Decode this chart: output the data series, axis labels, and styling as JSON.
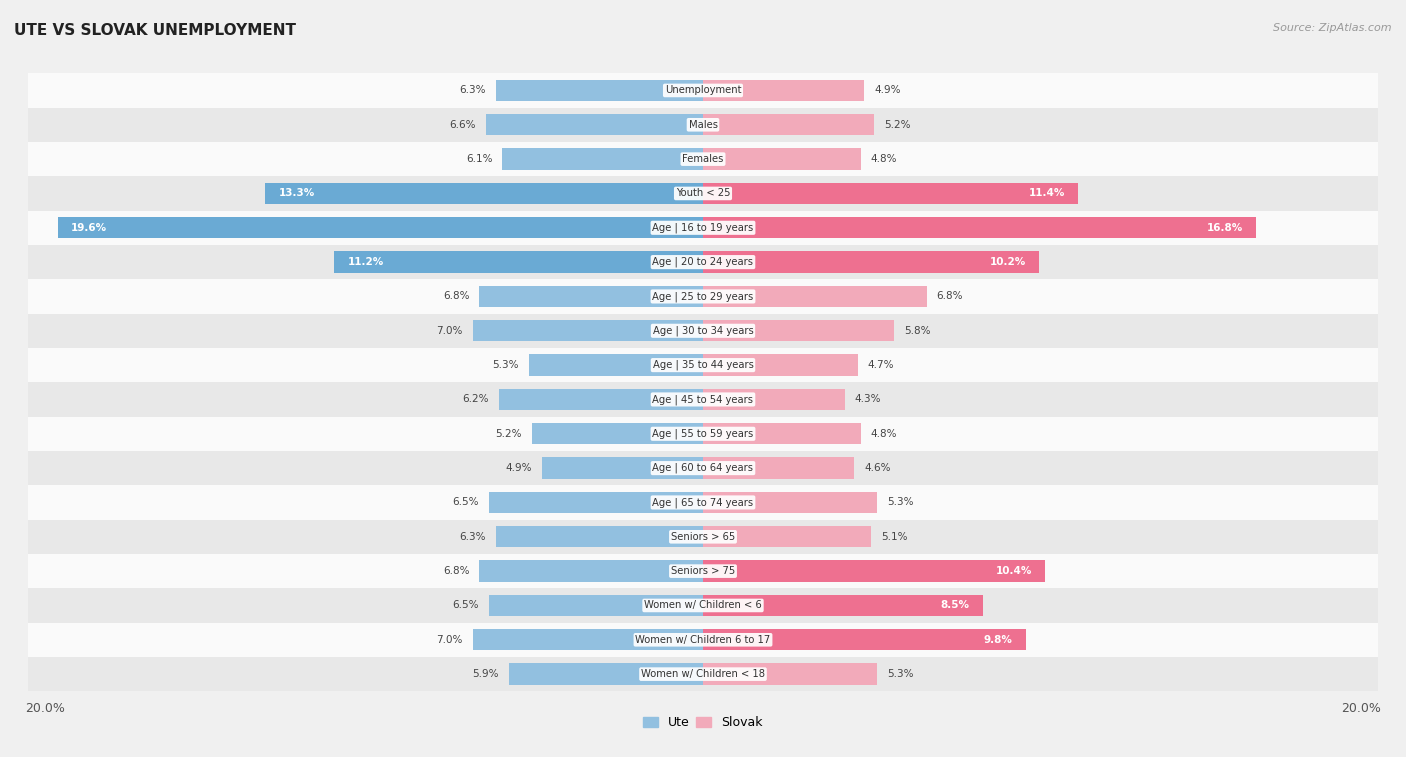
{
  "title": "UTE VS SLOVAK UNEMPLOYMENT",
  "source": "Source: ZipAtlas.com",
  "categories": [
    "Unemployment",
    "Males",
    "Females",
    "Youth < 25",
    "Age | 16 to 19 years",
    "Age | 20 to 24 years",
    "Age | 25 to 29 years",
    "Age | 30 to 34 years",
    "Age | 35 to 44 years",
    "Age | 45 to 54 years",
    "Age | 55 to 59 years",
    "Age | 60 to 64 years",
    "Age | 65 to 74 years",
    "Seniors > 65",
    "Seniors > 75",
    "Women w/ Children < 6",
    "Women w/ Children 6 to 17",
    "Women w/ Children < 18"
  ],
  "ute_values": [
    6.3,
    6.6,
    6.1,
    13.3,
    19.6,
    11.2,
    6.8,
    7.0,
    5.3,
    6.2,
    5.2,
    4.9,
    6.5,
    6.3,
    6.8,
    6.5,
    7.0,
    5.9
  ],
  "slovak_values": [
    4.9,
    5.2,
    4.8,
    11.4,
    16.8,
    10.2,
    6.8,
    5.8,
    4.7,
    4.3,
    4.8,
    4.6,
    5.3,
    5.1,
    10.4,
    8.5,
    9.8,
    5.3
  ],
  "ute_color": "#92C0E0",
  "slovak_color": "#F2AABA",
  "ute_highlight_color": "#6AAAD4",
  "slovak_highlight_color": "#EE7090",
  "max_val": 20.0,
  "bg_color": "#f0f0f0",
  "row_color_light": "#fafafa",
  "row_color_dark": "#e8e8e8",
  "legend_ute": "Ute",
  "legend_slovak": "Slovak",
  "label_inside_threshold": 8.0
}
